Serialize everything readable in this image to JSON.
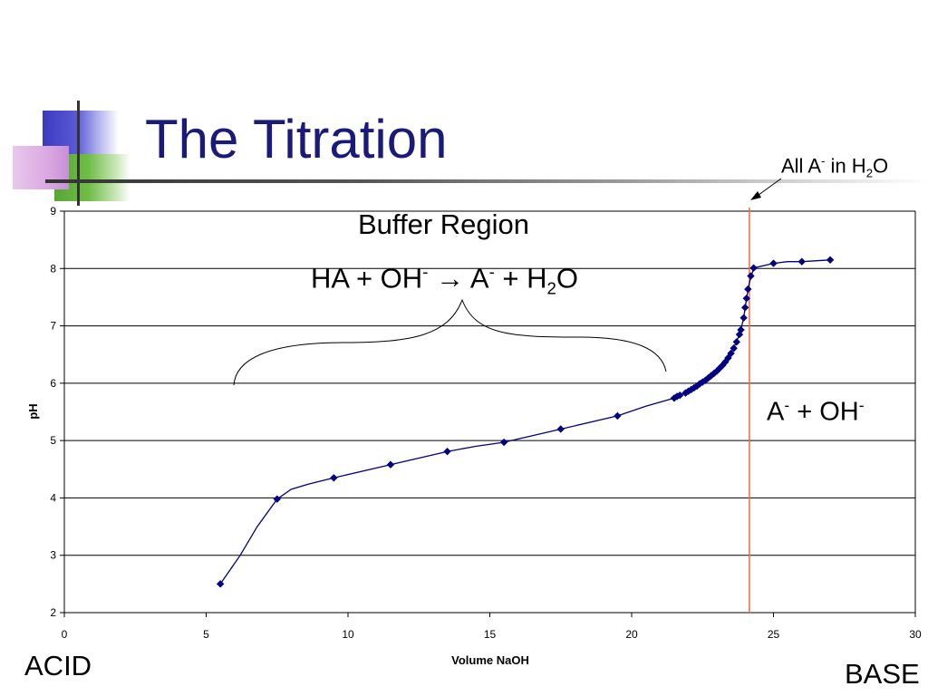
{
  "slide": {
    "title": "The Titration",
    "corner_left": "ACID",
    "corner_right": "BASE"
  },
  "annotations": {
    "buffer_region": "Buffer Region",
    "reaction": {
      "p1": "HA + OH",
      "p2": "-",
      "arrow": "→",
      "p3": " A",
      "p4": "-",
      "p5": " + H",
      "p6": "2",
      "p7": "O"
    },
    "equivalence": {
      "p1": "All A",
      "p2": "-",
      "p3": " in H",
      "p4": "2",
      "p5": "O"
    },
    "excess_base": {
      "p1": "A",
      "p2": "-",
      "p3": " + OH",
      "p4": "-"
    }
  },
  "colors": {
    "series": "#000080",
    "equivalence_line": "#ff6633",
    "title": "#1a1a7a"
  },
  "chart_data": {
    "type": "line",
    "xlabel": "Volume  NaOH",
    "ylabel": "pH",
    "xlim": [
      0,
      30
    ],
    "ylim": [
      2,
      9
    ],
    "xticks": [
      0,
      5,
      10,
      15,
      20,
      25,
      30
    ],
    "yticks": [
      2,
      3,
      4,
      5,
      6,
      7,
      8,
      9
    ],
    "grid": "horizontal",
    "equivalence_x": 24.15,
    "series": [
      {
        "points": [
          [
            5.5,
            2.5
          ],
          [
            7.5,
            3.98
          ],
          [
            9.5,
            4.35
          ],
          [
            11.5,
            4.58
          ],
          [
            13.5,
            4.81
          ],
          [
            15.5,
            4.97
          ],
          [
            17.5,
            5.2
          ],
          [
            19.5,
            5.43
          ],
          [
            21.5,
            5.74
          ],
          [
            21.6,
            5.77
          ],
          [
            21.7,
            5.79
          ],
          [
            21.9,
            5.83
          ],
          [
            22.0,
            5.86
          ],
          [
            22.1,
            5.89
          ],
          [
            22.2,
            5.92
          ],
          [
            22.3,
            5.95
          ],
          [
            22.4,
            5.99
          ],
          [
            22.5,
            6.02
          ],
          [
            22.6,
            6.05
          ],
          [
            22.7,
            6.09
          ],
          [
            22.8,
            6.13
          ],
          [
            22.9,
            6.17
          ],
          [
            23.0,
            6.21
          ],
          [
            23.1,
            6.26
          ],
          [
            23.2,
            6.31
          ],
          [
            23.3,
            6.37
          ],
          [
            23.4,
            6.44
          ],
          [
            23.5,
            6.52
          ],
          [
            23.6,
            6.61
          ],
          [
            23.7,
            6.72
          ],
          [
            23.8,
            6.85
          ],
          [
            23.85,
            6.93
          ],
          [
            23.95,
            7.14
          ],
          [
            24.0,
            7.32
          ],
          [
            24.05,
            7.48
          ],
          [
            24.1,
            7.64
          ],
          [
            24.2,
            7.87
          ],
          [
            24.3,
            8.01
          ],
          [
            25.0,
            8.09
          ],
          [
            26.0,
            8.12
          ],
          [
            27.0,
            8.15
          ]
        ],
        "curve_path": [
          [
            5.5,
            2.5
          ],
          [
            6.2,
            3.0
          ],
          [
            6.8,
            3.5
          ],
          [
            7.5,
            3.98
          ],
          [
            8.0,
            4.15
          ],
          [
            8.6,
            4.24
          ],
          [
            9.5,
            4.35
          ],
          [
            11.5,
            4.58
          ],
          [
            13.5,
            4.81
          ],
          [
            14.5,
            4.9
          ],
          [
            15.5,
            4.97
          ],
          [
            17.5,
            5.2
          ],
          [
            19.5,
            5.43
          ],
          [
            20.5,
            5.6
          ],
          [
            21.5,
            5.74
          ],
          [
            22.0,
            5.86
          ],
          [
            22.5,
            6.02
          ],
          [
            23.0,
            6.21
          ],
          [
            23.4,
            6.44
          ],
          [
            23.7,
            6.72
          ],
          [
            23.85,
            6.93
          ],
          [
            23.95,
            7.14
          ],
          [
            24.05,
            7.48
          ],
          [
            24.15,
            7.75
          ],
          [
            24.3,
            8.01
          ],
          [
            25.0,
            8.09
          ],
          [
            25.5,
            8.12
          ],
          [
            26.0,
            8.12
          ],
          [
            27.0,
            8.15
          ]
        ]
      }
    ]
  }
}
